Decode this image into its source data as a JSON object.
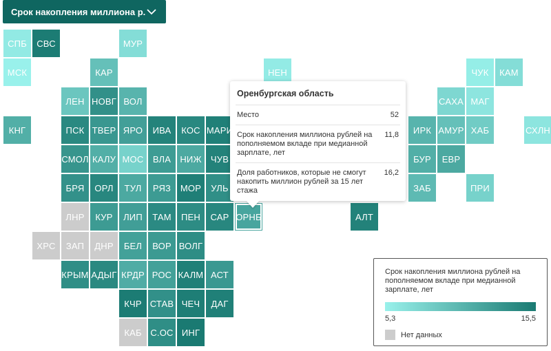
{
  "dropdown": {
    "label": "Срок накопления миллиона р...",
    "icon": "chevron-down-icon"
  },
  "colors": {
    "scale_min": "#99f1eb",
    "scale_max": "#1a7a72",
    "no_data": "#cccccc",
    "header": "#0f6660"
  },
  "chart_data": {
    "type": "tile-grid-map",
    "metric": "Срок накопления миллиона рублей на пополняемом вкладе при медианной зарплате, лет",
    "range": [
      5.3,
      15.5
    ],
    "regions": [
      {
        "label": "СПБ",
        "col": 0,
        "row": 0,
        "value": 5.9
      },
      {
        "label": "СВС",
        "col": 1,
        "row": 0,
        "value": 15.3
      },
      {
        "label": "МУР",
        "col": 4,
        "row": 0,
        "value": 7.0
      },
      {
        "label": "МСК",
        "col": 0,
        "row": 1,
        "value": 5.3
      },
      {
        "label": "КАР",
        "col": 3,
        "row": 1,
        "value": 9.5
      },
      {
        "label": "НЕН",
        "col": 9,
        "row": 1,
        "value": 5.8
      },
      {
        "label": "ЧУК",
        "col": 16,
        "row": 1,
        "value": 5.6
      },
      {
        "label": "КАМ",
        "col": 17,
        "row": 1,
        "value": 7.0
      },
      {
        "label": "ЛЕН",
        "col": 2,
        "row": 2,
        "value": 9.0
      },
      {
        "label": "НОВГ",
        "col": 3,
        "row": 2,
        "value": 13.6
      },
      {
        "label": "ВОЛ",
        "col": 4,
        "row": 2,
        "value": 10.5
      },
      {
        "label": "САХА",
        "col": 15,
        "row": 2,
        "value": 7.5
      },
      {
        "label": "МАГ",
        "col": 16,
        "row": 2,
        "value": 6.3
      },
      {
        "label": "КНГ",
        "col": 0,
        "row": 3,
        "value": 11.0
      },
      {
        "label": "ПСК",
        "col": 2,
        "row": 3,
        "value": 14.2
      },
      {
        "label": "ТВЕР",
        "col": 3,
        "row": 3,
        "value": 13.0
      },
      {
        "label": "ЯРО",
        "col": 4,
        "row": 3,
        "value": 12.3
      },
      {
        "label": "ИВА",
        "col": 5,
        "row": 3,
        "value": 14.7
      },
      {
        "label": "КОС",
        "col": 6,
        "row": 3,
        "value": 14.3
      },
      {
        "label": "МАРИ",
        "col": 7,
        "row": 3,
        "value": 15.0
      },
      {
        "label": "ИРК",
        "col": 14,
        "row": 3,
        "value": 10.5
      },
      {
        "label": "АМУР",
        "col": 15,
        "row": 3,
        "value": 9.5
      },
      {
        "label": "ХАБ",
        "col": 16,
        "row": 3,
        "value": 8.5
      },
      {
        "label": "СХЛН",
        "col": 18,
        "row": 3,
        "value": 6.3
      },
      {
        "label": "СМОЛ",
        "col": 2,
        "row": 4,
        "value": 13.2
      },
      {
        "label": "КАЛУ",
        "col": 3,
        "row": 4,
        "value": 11.0
      },
      {
        "label": "МОС",
        "col": 4,
        "row": 4,
        "value": 8.0
      },
      {
        "label": "ВЛА",
        "col": 5,
        "row": 4,
        "value": 12.6
      },
      {
        "label": "НИЖ",
        "col": 6,
        "row": 4,
        "value": 11.5
      },
      {
        "label": "ЧУВ",
        "col": 7,
        "row": 4,
        "value": 14.8
      },
      {
        "label": "БУР",
        "col": 14,
        "row": 4,
        "value": 11.0
      },
      {
        "label": "ЕВР",
        "col": 15,
        "row": 4,
        "value": 11.5
      },
      {
        "label": "БРЯ",
        "col": 2,
        "row": 5,
        "value": 13.5
      },
      {
        "label": "ОРЛ",
        "col": 3,
        "row": 5,
        "value": 14.4
      },
      {
        "label": "ТУЛ",
        "col": 4,
        "row": 5,
        "value": 11.5
      },
      {
        "label": "РЯЗ",
        "col": 5,
        "row": 5,
        "value": 12.7
      },
      {
        "label": "МОР",
        "col": 6,
        "row": 5,
        "value": 15.1
      },
      {
        "label": "УЛЬ",
        "col": 7,
        "row": 5,
        "value": 13.7
      },
      {
        "label": "ЗАБ",
        "col": 14,
        "row": 5,
        "value": 10.0
      },
      {
        "label": "ПРИ",
        "col": 16,
        "row": 5,
        "value": 8.0
      },
      {
        "label": "ЛНР",
        "col": 2,
        "row": 6,
        "value": null
      },
      {
        "label": "КУР",
        "col": 3,
        "row": 6,
        "value": 12.7
      },
      {
        "label": "ЛИП",
        "col": 4,
        "row": 6,
        "value": 12.4
      },
      {
        "label": "ТАМ",
        "col": 5,
        "row": 6,
        "value": 14.1
      },
      {
        "label": "ПЕН",
        "col": 6,
        "row": 6,
        "value": 14.0
      },
      {
        "label": "САР",
        "col": 7,
        "row": 6,
        "value": 14.4
      },
      {
        "label": "ОРНБ",
        "col": 8,
        "row": 6,
        "value": 11.8
      },
      {
        "label": "АЛТ",
        "col": 12,
        "row": 6,
        "value": 14.8
      },
      {
        "label": "ХРС",
        "col": 1,
        "row": 7,
        "value": null
      },
      {
        "label": "ЗАП",
        "col": 2,
        "row": 7,
        "value": null
      },
      {
        "label": "ДНР",
        "col": 3,
        "row": 7,
        "value": null
      },
      {
        "label": "БЕЛ",
        "col": 4,
        "row": 7,
        "value": 12.2
      },
      {
        "label": "ВОР",
        "col": 5,
        "row": 7,
        "value": 12.8
      },
      {
        "label": "ВОЛГ",
        "col": 6,
        "row": 7,
        "value": 13.9
      },
      {
        "label": "КРЫМ",
        "col": 2,
        "row": 8,
        "value": 13.8
      },
      {
        "label": "АДЫГ",
        "col": 3,
        "row": 8,
        "value": 14.2
      },
      {
        "label": "КРДР",
        "col": 4,
        "row": 8,
        "value": 11.2
      },
      {
        "label": "РОС",
        "col": 5,
        "row": 8,
        "value": 12.2
      },
      {
        "label": "КАЛМ",
        "col": 6,
        "row": 8,
        "value": 15.0
      },
      {
        "label": "АСТ",
        "col": 7,
        "row": 8,
        "value": 12.9
      },
      {
        "label": "КЧР",
        "col": 4,
        "row": 9,
        "value": 15.3
      },
      {
        "label": "СТАВ",
        "col": 5,
        "row": 9,
        "value": 13.6
      },
      {
        "label": "ЧЕЧ",
        "col": 6,
        "row": 9,
        "value": 15.2
      },
      {
        "label": "ДАГ",
        "col": 7,
        "row": 9,
        "value": 15.0
      },
      {
        "label": "КАБ",
        "col": 4,
        "row": 10,
        "value": null
      },
      {
        "label": "С.ОС",
        "col": 5,
        "row": 10,
        "value": 13.8
      },
      {
        "label": "ИНГ",
        "col": 6,
        "row": 10,
        "value": 15.5
      }
    ]
  },
  "tooltip": {
    "title": "Оренбургская область",
    "rows": [
      {
        "label": "Место",
        "value": "52"
      },
      {
        "label": "Срок накопления миллиона рублей на пополняемом вкладе при медианной зарплате, лет",
        "value": "11,8"
      },
      {
        "label": "Доля работников, которые не смогут накопить миллион рублей за 15 лет стажа",
        "value": "16,2"
      }
    ]
  },
  "legend": {
    "title": "Срок накопления миллиона рублей на пополняемом вкладе при медианной зарплате, лет",
    "min_label": "5,3",
    "max_label": "15,5",
    "nodata_label": "Нет данных"
  }
}
